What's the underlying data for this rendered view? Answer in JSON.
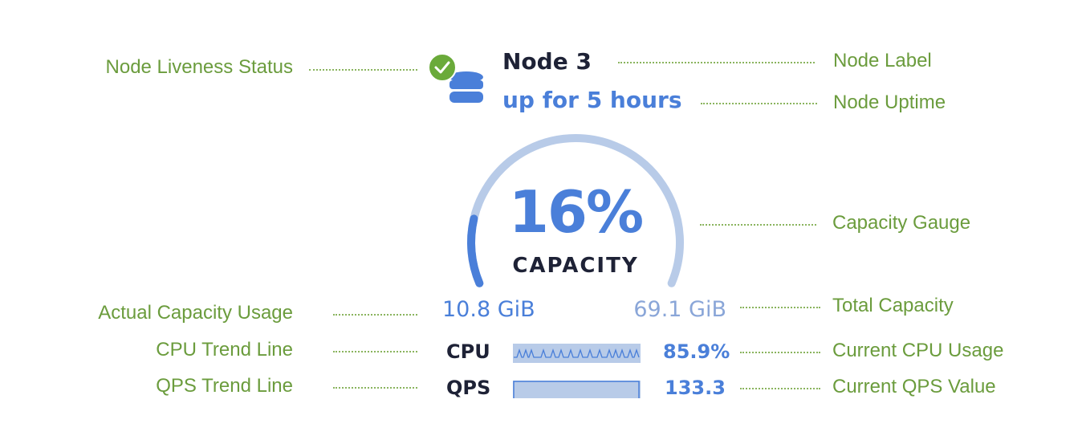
{
  "node": {
    "label": "Node 3",
    "uptime": "up for 5 hours",
    "liveness": "live",
    "status_icon": "check-circle-icon",
    "node_icon": "database-icon"
  },
  "gauge": {
    "percent_label": "16%",
    "percent": 16,
    "caption": "CAPACITY",
    "used": "10.8 GiB",
    "total": "69.1 GiB"
  },
  "metrics": [
    {
      "label": "CPU",
      "value": "85.9%"
    },
    {
      "label": "QPS",
      "value": "133.3"
    }
  ],
  "annotations": {
    "liveness": "Node Liveness Status",
    "node_label": "Node Label",
    "uptime": "Node Uptime",
    "gauge": "Capacity Gauge",
    "used": "Actual Capacity Usage",
    "total": "Total Capacity",
    "cpu_trend": "CPU Trend Line",
    "cpu_value": "Current CPU Usage",
    "qps_trend": "QPS Trend Line",
    "qps_value": "Current QPS Value"
  },
  "colors": {
    "accent": "#4a7fd9",
    "track": "#b8cbe8",
    "annotation": "#6b9c3d",
    "live": "#6aaa3a",
    "text_dark": "#1e2236",
    "total": "#8aa6d8"
  }
}
